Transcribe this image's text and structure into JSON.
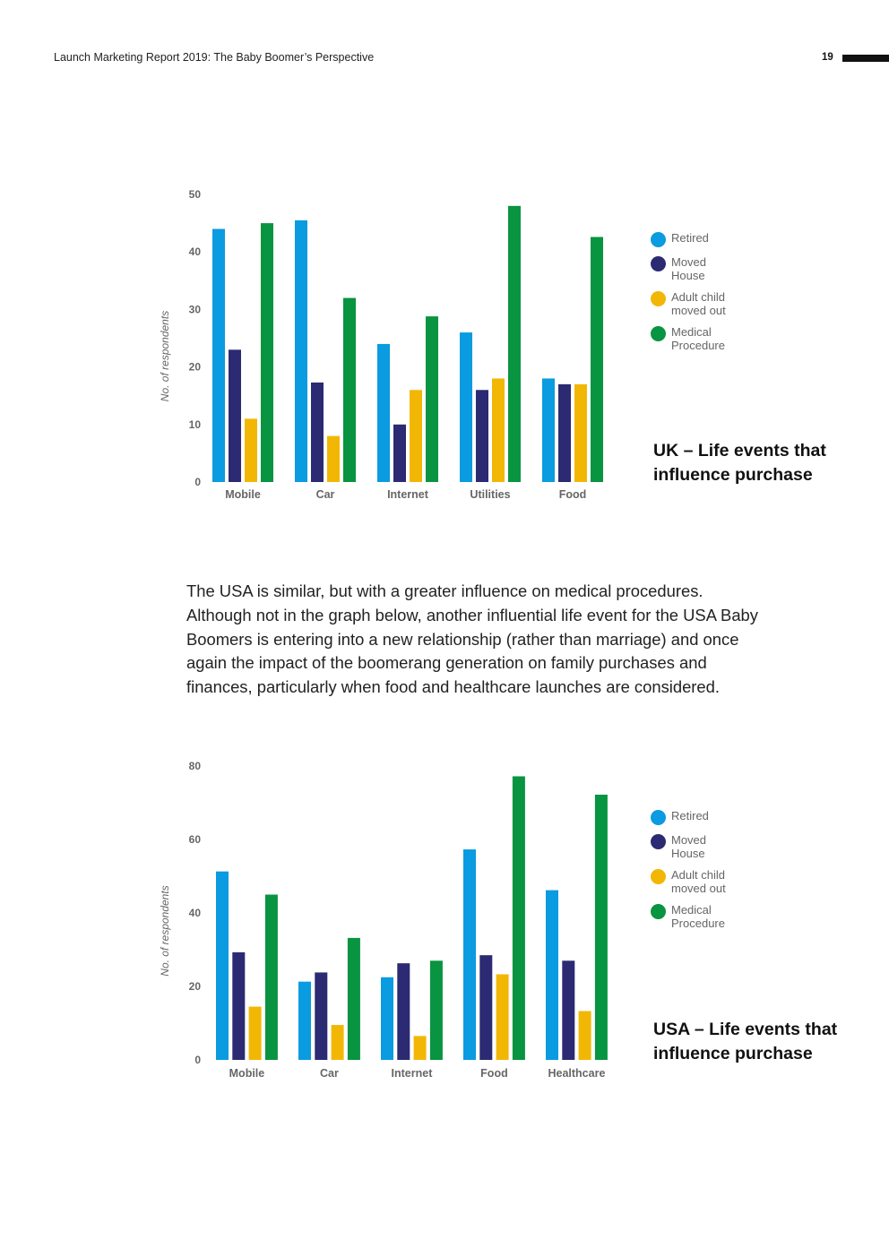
{
  "header": {
    "title": "Launch Marketing Report 2019: The Baby Boomer’s Perspective",
    "page_number": "19"
  },
  "body_text": "The USA is similar, but with a greater influence on medical procedures. Although not in the graph below, another influential life event for the USA Baby Boomers is entering into a new relationship (rather than marriage) and once again the impact of the boomerang generation on family purchases and finances, particularly when food and healthcare launches are considered.",
  "colors": {
    "Retired": "#0a9be0",
    "Moved House": "#2b2a72",
    "Adult child moved out": "#f2b705",
    "Medical Procedure": "#089440"
  },
  "chart_data": [
    {
      "type": "bar",
      "title": "UK – Life events that influence purchase",
      "xlabel": "",
      "ylabel": "No. of respondents",
      "ylim": [
        0,
        50
      ],
      "yticks": [
        0,
        10,
        20,
        30,
        40,
        50
      ],
      "categories": [
        "Mobile",
        "Car",
        "Internet",
        "Utilities",
        "Food"
      ],
      "series": [
        {
          "name": "Retired",
          "label": "Retired",
          "values": [
            44,
            45.5,
            24,
            26,
            18
          ]
        },
        {
          "name": "Moved House",
          "label": "Moved House",
          "values": [
            23,
            17.3,
            10,
            16,
            17
          ]
        },
        {
          "name": "Adult child moved out",
          "label": "Adult child moved out",
          "values": [
            11,
            8,
            16,
            18,
            17
          ]
        },
        {
          "name": "Medical Procedure",
          "label": "Medical Procedure",
          "values": [
            45,
            32,
            28.8,
            48,
            42.6
          ]
        }
      ],
      "grid": false,
      "legend": "right"
    },
    {
      "type": "bar",
      "title": "USA – Life events that influence purchase",
      "xlabel": "",
      "ylabel": "No. of respondents",
      "ylim": [
        0,
        80
      ],
      "yticks": [
        0,
        20,
        40,
        60,
        80
      ],
      "categories": [
        "Mobile",
        "Car",
        "Internet",
        "Food",
        "Healthcare"
      ],
      "series": [
        {
          "name": "Retired",
          "label": "Retired",
          "values": [
            51.3,
            21.3,
            22.5,
            57.3,
            46.2
          ]
        },
        {
          "name": "Moved House",
          "label": "Moved House",
          "values": [
            29.3,
            23.8,
            26.3,
            28.5,
            27
          ]
        },
        {
          "name": "Adult child moved out",
          "label": "Adult child moved out",
          "values": [
            14.5,
            9.5,
            6.5,
            23.3,
            13.3
          ]
        },
        {
          "name": "Medical Procedure",
          "label": "Medical Procedure",
          "values": [
            45,
            33.2,
            27,
            77.2,
            72.2
          ]
        }
      ],
      "grid": false,
      "legend": "right"
    }
  ]
}
